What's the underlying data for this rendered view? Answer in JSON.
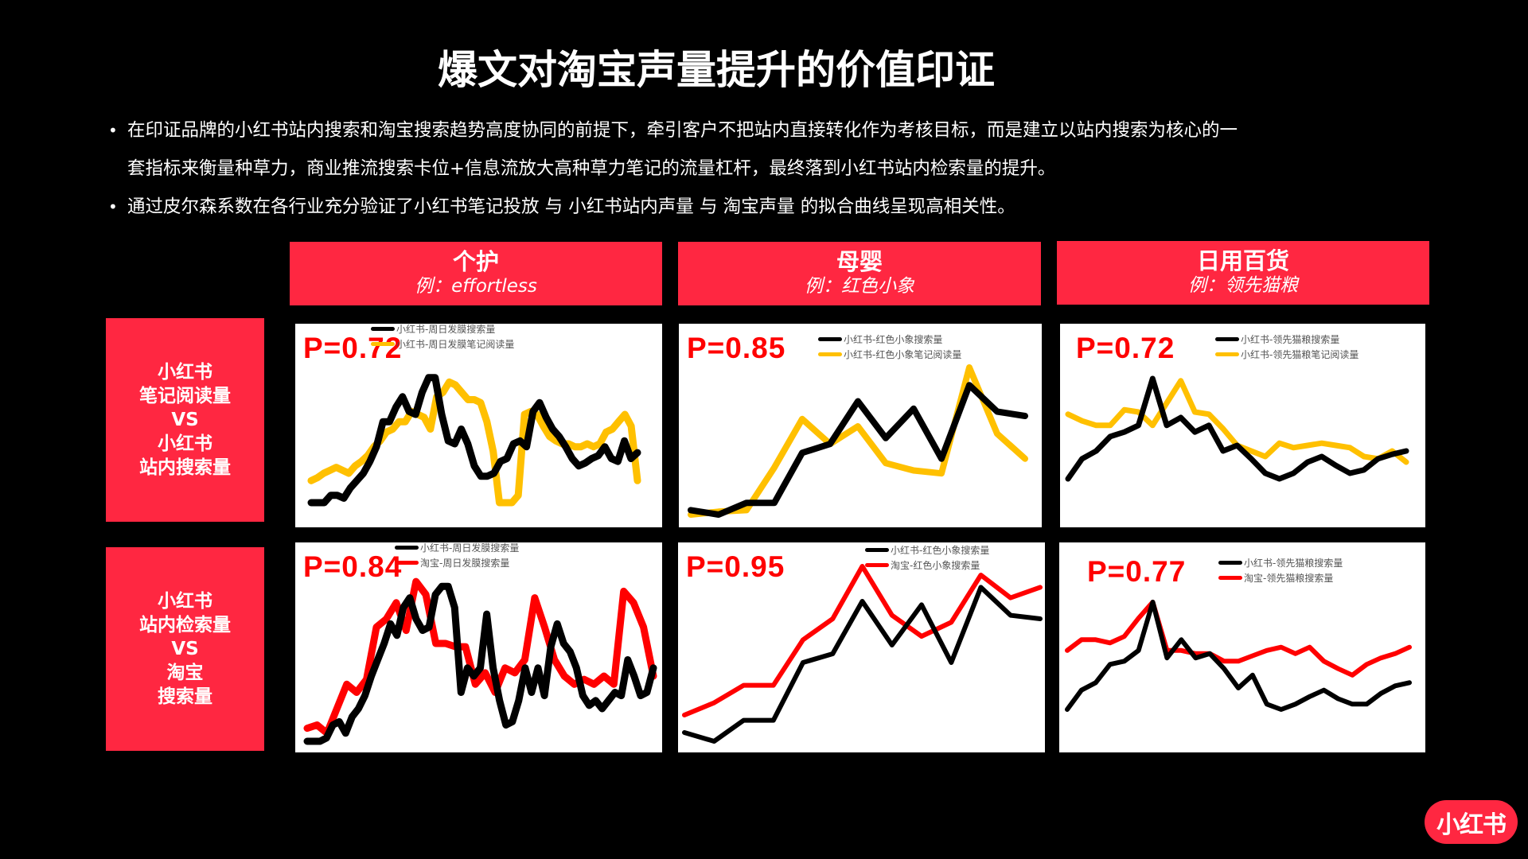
{
  "title": "爆文对淘宝声量提升的价值印证",
  "bullets": [
    {
      "dot": "•",
      "text": "在印证品牌的小红书站内搜索和淘宝搜索趋势高度协同的前提下，牵引客户不把站内直接转化作为考核目标，而是建立以站内搜索为核心的一"
    },
    {
      "dot": "",
      "text": "套指标来衡量种草力，商业推流搜索卡位+信息流放大高种草力笔记的流量杠杆，最终落到小红书站内检索量的提升。"
    },
    {
      "dot": "•",
      "text": "通过皮尔森系数在各行业充分验证了小红书笔记投放  与 小红书站内声量 与  淘宝声量  的拟合曲线呈现高相关性。"
    }
  ],
  "columns": [
    {
      "title": "个护",
      "subtitle": "例：effortless"
    },
    {
      "title": "母婴",
      "subtitle": "例：红色小象"
    },
    {
      "title": "日用百货",
      "subtitle": "例：领先猫粮"
    }
  ],
  "rows": [
    {
      "label_lines": [
        "小红书",
        "笔记阅读量",
        "VS",
        "小红书",
        "站内搜索量"
      ]
    },
    {
      "label_lines": [
        "小红书",
        "站内检索量",
        "VS",
        "淘宝",
        "搜索量"
      ]
    }
  ],
  "colors": {
    "accent_red": "#FF2741",
    "pvalue_red": "#FF0000",
    "series_black": "#000000",
    "series_yellow": "#FFC000",
    "series_red": "#FF0000"
  },
  "logo": {
    "text": "小红书"
  },
  "chart_data": [
    {
      "type": "line",
      "title": "P=0.72",
      "row": 0,
      "column": 0,
      "grid": false,
      "legend_position": "top",
      "ylim": [
        0,
        100
      ],
      "series": [
        {
          "name": "小红书-周日发膜搜索量",
          "color": "#000000",
          "values": [
            0,
            0,
            0,
            5,
            5,
            3,
            10,
            15,
            20,
            28,
            38,
            55,
            55,
            65,
            72,
            62,
            60,
            75,
            85,
            85,
            60,
            42,
            40,
            50,
            40,
            25,
            18,
            18,
            20,
            28,
            30,
            40,
            42,
            38,
            62,
            68,
            58,
            50,
            45,
            38,
            30,
            25,
            27,
            30,
            32,
            38,
            30,
            28,
            42,
            30,
            34
          ]
        },
        {
          "name": "小红书-周日发膜笔记阅读量",
          "color": "#FFC000",
          "values": [
            15,
            17,
            20,
            22,
            24,
            22,
            20,
            25,
            28,
            32,
            38,
            42,
            48,
            50,
            55,
            55,
            62,
            60,
            58,
            50,
            72,
            75,
            82,
            80,
            75,
            70,
            70,
            68,
            55,
            35,
            0,
            0,
            0,
            5,
            60,
            62,
            60,
            52,
            45,
            42,
            40,
            40,
            38,
            38,
            40,
            38,
            40,
            48,
            50,
            55,
            60,
            52,
            15
          ]
        }
      ]
    },
    {
      "type": "line",
      "title": "P=0.85",
      "row": 0,
      "column": 1,
      "grid": false,
      "legend_position": "top",
      "ylim": [
        0,
        100
      ],
      "series": [
        {
          "name": "小红书-红色小象搜索量",
          "color": "#000000",
          "values": [
            3,
            0,
            8,
            8,
            42,
            48,
            77,
            52,
            72,
            38,
            88,
            70,
            67
          ]
        },
        {
          "name": "小红书-红色小象笔记阅读量",
          "color": "#FFC000",
          "values": [
            0,
            2,
            3,
            32,
            65,
            48,
            60,
            35,
            30,
            28,
            100,
            55,
            38
          ]
        }
      ]
    },
    {
      "type": "line",
      "title": "P=0.72",
      "row": 0,
      "column": 2,
      "grid": false,
      "legend_position": "top",
      "ylim": [
        0,
        100
      ],
      "series": [
        {
          "name": "小红书-领先猫粮搜索量",
          "color": "#000000",
          "values": [
            0,
            18,
            25,
            38,
            42,
            48,
            90,
            48,
            55,
            42,
            48,
            25,
            30,
            18,
            5,
            0,
            5,
            15,
            20,
            12,
            5,
            8,
            18,
            22,
            25
          ]
        },
        {
          "name": "小红书-领先猫粮笔记阅读量",
          "color": "#FFC000",
          "values": [
            58,
            52,
            48,
            48,
            62,
            60,
            48,
            68,
            88,
            60,
            58,
            45,
            30,
            25,
            20,
            32,
            28,
            30,
            32,
            30,
            28,
            20,
            18,
            25,
            15
          ]
        }
      ]
    },
    {
      "type": "line",
      "title": "P=0.84",
      "row": 1,
      "column": 0,
      "grid": false,
      "legend_position": "top",
      "ylim": [
        0,
        100
      ],
      "series": [
        {
          "name": "小红书-周日发膜搜索量",
          "color": "#000000",
          "values": [
            0,
            0,
            0,
            2,
            10,
            12,
            5,
            15,
            20,
            28,
            40,
            50,
            60,
            72,
            65,
            82,
            88,
            75,
            68,
            70,
            90,
            95,
            95,
            82,
            30,
            45,
            40,
            45,
            78,
            45,
            25,
            10,
            12,
            25,
            45,
            30,
            45,
            28,
            58,
            72,
            60,
            55,
            45,
            28,
            22,
            25,
            20,
            25,
            30,
            28,
            50,
            40,
            28,
            30,
            45
          ]
        },
        {
          "name": "淘宝-周日发膜搜索量",
          "color": "#FF0000",
          "values": [
            8,
            10,
            5,
            20,
            35,
            30,
            38,
            70,
            75,
            85,
            68,
            98,
            90,
            60,
            60,
            58,
            58,
            35,
            42,
            30,
            45,
            42,
            50,
            88,
            70,
            50,
            40,
            35,
            38,
            35,
            40,
            35,
            92,
            85,
            70,
            40
          ]
        }
      ]
    },
    {
      "type": "line",
      "title": "P=0.95",
      "row": 1,
      "column": 1,
      "grid": false,
      "legend_position": "top",
      "ylim": [
        0,
        100
      ],
      "series": [
        {
          "name": "小红书-红色小象搜索量",
          "color": "#000000",
          "values": [
            5,
            0,
            12,
            12,
            45,
            50,
            80,
            55,
            78,
            45,
            88,
            72,
            70
          ]
        },
        {
          "name": "淘宝-红色小象搜索量",
          "color": "#FF0000",
          "values": [
            15,
            22,
            32,
            32,
            58,
            70,
            100,
            72,
            60,
            68,
            95,
            82,
            88
          ]
        }
      ]
    },
    {
      "type": "line",
      "title": "P=0.77",
      "row": 1,
      "column": 2,
      "grid": false,
      "legend_position": "top",
      "ylim": [
        0,
        100
      ],
      "series": [
        {
          "name": "小红书-领先猫粮搜索量",
          "color": "#000000",
          "values": [
            0,
            18,
            25,
            42,
            45,
            55,
            100,
            48,
            65,
            48,
            52,
            38,
            20,
            32,
            5,
            0,
            5,
            12,
            18,
            10,
            5,
            5,
            15,
            22,
            25
          ]
        },
        {
          "name": "淘宝-领先猫粮搜索量",
          "color": "#FF0000",
          "values": [
            55,
            65,
            65,
            62,
            68,
            85,
            100,
            55,
            55,
            52,
            52,
            45,
            45,
            50,
            55,
            58,
            52,
            58,
            45,
            38,
            32,
            42,
            48,
            52,
            58
          ]
        }
      ]
    }
  ]
}
